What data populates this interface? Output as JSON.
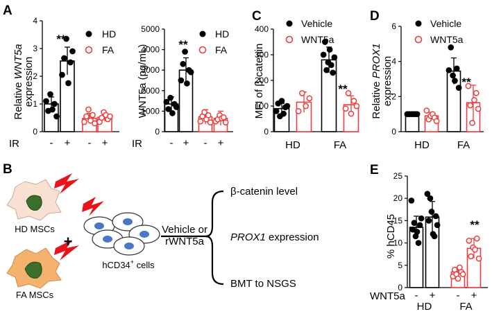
{
  "figure": {
    "panel_letters": {
      "A": "A",
      "B": "B",
      "C": "C",
      "D": "D",
      "E": "E"
    }
  },
  "colors": {
    "hd": "#000000",
    "fa": "#ee3b3b",
    "cell_fill": "#4a78c7",
    "msc_hd": "#f8e0d3",
    "msc_fa": "#f4b26e",
    "bolt": "#e8141c"
  },
  "chart_data": [
    {
      "id": "A1",
      "type": "bar",
      "ylabel_pre": "Relative ",
      "ylabel_gene": "WNT5a",
      "ylabel_post": "expression",
      "ylim": [
        0,
        4
      ],
      "yticks": [
        0,
        1,
        2,
        3,
        4
      ],
      "row_label": "IR",
      "categories": [
        "-",
        "+",
        "-",
        "+"
      ],
      "groups": [
        "HD",
        "HD",
        "FA",
        "FA"
      ],
      "values": [
        1.0,
        2.55,
        0.48,
        0.52
      ],
      "errors": [
        0.25,
        0.5,
        0.18,
        0.15
      ],
      "points": [
        [
          1.1,
          0.75,
          1.35,
          0.8,
          1.0,
          0.55
        ],
        [
          2.05,
          2.65,
          3.35,
          1.75,
          2.5,
          2.9
        ],
        [
          0.35,
          0.55,
          0.8,
          0.4,
          0.6,
          0.3
        ],
        [
          0.35,
          0.5,
          0.7,
          0.6,
          0.45,
          0.55
        ]
      ],
      "annotations": [
        {
          "index": 1,
          "text": "**"
        }
      ],
      "legend": [
        "HD",
        "FA"
      ]
    },
    {
      "id": "A2",
      "type": "bar",
      "ylabel": "WNT5a (pg/mL)",
      "ylim": [
        0,
        5000
      ],
      "yticks": [
        0,
        1000,
        2000,
        3000,
        4000,
        5000
      ],
      "row_label": "IR",
      "categories": [
        "-",
        "+",
        "-",
        "+"
      ],
      "groups": [
        "HD",
        "HD",
        "FA",
        "FA"
      ],
      "values": [
        1350,
        3000,
        720,
        650
      ],
      "errors": [
        350,
        600,
        350,
        350
      ],
      "points": [
        [
          1450,
          1100,
          1650,
          900,
          1350,
          1200
        ],
        [
          2500,
          3300,
          3900,
          2350,
          3000,
          2900
        ],
        [
          500,
          750,
          950,
          600,
          800,
          450
        ],
        [
          500,
          600,
          800,
          650,
          700,
          450
        ]
      ],
      "annotations": [
        {
          "index": 1,
          "text": "**"
        }
      ],
      "legend": [
        "HD",
        "FA"
      ]
    },
    {
      "id": "C",
      "type": "bar",
      "ylabel_pre": "MFI of ",
      "ylabel_greek": "β",
      "ylabel_post": "-catenin",
      "ylim": [
        0,
        400
      ],
      "yticks": [
        0,
        100,
        200,
        300,
        400
      ],
      "categories": [
        "HD",
        "FA"
      ],
      "series": [
        {
          "name": "Vehicle",
          "values": [
            90,
            280
          ],
          "errors": [
            20,
            50
          ],
          "points": [
            [
              80,
              110,
              60,
              120,
              70,
              95,
              100
            ],
            [
              300,
              350,
              240,
              270,
              320,
              260,
              230,
              290
            ]
          ]
        },
        {
          "name": "WNT5a",
          "values": [
            115,
            105
          ],
          "errors": [
            40,
            35
          ],
          "points": [
            [
              80,
              150,
              100,
              130
            ],
            [
              90,
              150,
              70,
              120,
              100
            ]
          ]
        }
      ],
      "annotations": [
        {
          "category": 1,
          "series": 1,
          "text": "**"
        }
      ]
    },
    {
      "id": "D",
      "type": "bar",
      "ylabel_pre": "Relative ",
      "ylabel_gene": "PROX1",
      "ylabel_post": "expression",
      "ylim": [
        0,
        6
      ],
      "yticks": [
        0,
        2,
        4,
        6
      ],
      "categories": [
        "HD",
        "FA"
      ],
      "series": [
        {
          "name": "Vehicle",
          "values": [
            1.0,
            3.45
          ],
          "errors": [
            0.05,
            0.75
          ],
          "points": [
            [
              1.0,
              1.0,
              1.0,
              1.0,
              1.0,
              1.0
            ],
            [
              3.5,
              4.8,
              3.2,
              2.9,
              3.6,
              2.5
            ]
          ]
        },
        {
          "name": "WNT5a",
          "values": [
            0.9,
            1.65
          ],
          "errors": [
            0.2,
            1.0
          ],
          "points": [
            [
              1.2,
              0.7,
              0.9,
              1.0,
              0.8,
              0.6
            ],
            [
              2.6,
              1.5,
              0.5,
              1.8,
              2.2,
              1.3
            ]
          ]
        }
      ],
      "annotations": [
        {
          "category": 1,
          "series": 1,
          "text": "**"
        }
      ]
    },
    {
      "id": "E",
      "type": "bar",
      "ylabel": "% hCD45",
      "ylim": [
        0,
        25
      ],
      "yticks": [
        0,
        5,
        10,
        15,
        20,
        25
      ],
      "row_label": "WNT5a",
      "categories": [
        "-",
        "+",
        "-",
        "+"
      ],
      "groups": [
        "HD",
        "HD",
        "FA",
        "FA"
      ],
      "group_labels": [
        "HD",
        "FA"
      ],
      "values": [
        13.5,
        15.8,
        3.5,
        8.8
      ],
      "errors": [
        2.5,
        3.5,
        1.0,
        2.2
      ],
      "points": [
        [
          19.5,
          13,
          14.5,
          11.5,
          12.5,
          10,
          14,
          15.5
        ],
        [
          21,
          15,
          20,
          17,
          12,
          11.5,
          16,
          14
        ],
        [
          2.5,
          4,
          3,
          2,
          4.5,
          3.5,
          3
        ],
        [
          10.5,
          7,
          9,
          8.5,
          11,
          6.5
        ]
      ],
      "annotations": [
        {
          "index": 3,
          "text": "**"
        }
      ]
    }
  ],
  "schematic": {
    "hd_msc_label": "HD MSCs",
    "fa_msc_label": "FA MSCs",
    "plus": "+",
    "cells_label": "hCD34",
    "cells_sup": "+",
    "cells_post": " cells",
    "treatment_line1": "Vehicle or",
    "treatment_line2": "rWNT5a",
    "readout1_greek": "β",
    "readout1_rest": "-catenin level",
    "readout2_gene": "PROX1",
    "readout2_rest": " expression",
    "readout3": "BMT to NSGS"
  }
}
